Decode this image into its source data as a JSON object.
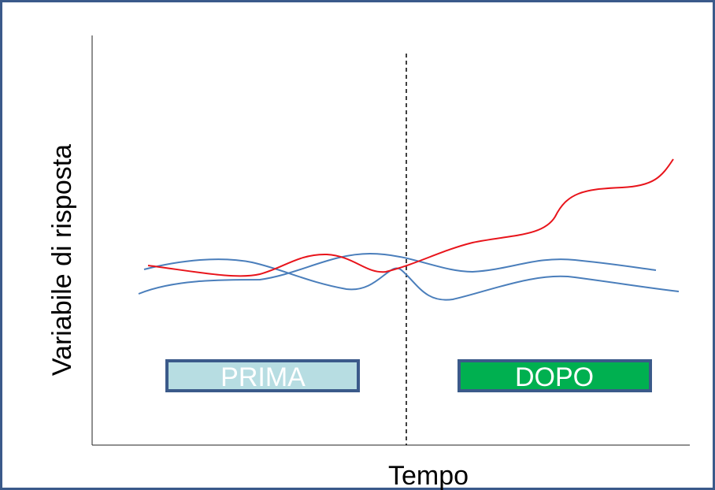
{
  "y_axis_label": "Variabile di risposta",
  "x_axis_label": "Tempo",
  "before_label": "PRIMA",
  "after_label": "DOPO"
}
